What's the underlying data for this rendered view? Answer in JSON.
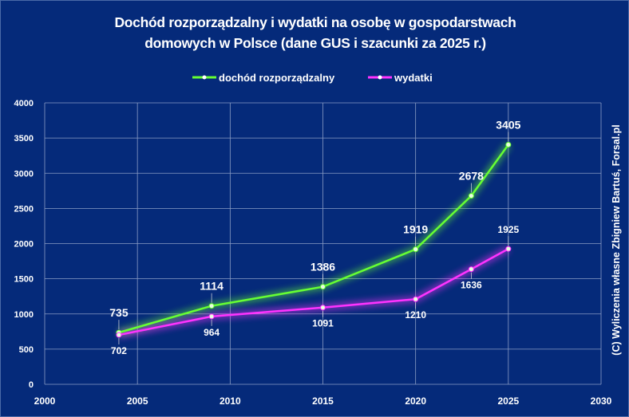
{
  "chart_data": {
    "type": "line",
    "title": "Dochód rozporządzalny i wydatki na osobę w gospodarstwach domowych w Polsce (dane GUS i szacunki za 2025 r.)",
    "title_lines": [
      "Dochód rozporządzalny i wydatki na osobę w gospodarstwach",
      "domowych w Polsce (dane GUS i szacunki za 2025 r.)"
    ],
    "xlabel": "",
    "ylabel": "",
    "xlim": [
      2000,
      2030
    ],
    "ylim": [
      0,
      4000
    ],
    "x_ticks": [
      2000,
      2005,
      2010,
      2015,
      2020,
      2025,
      2030
    ],
    "y_ticks": [
      0,
      500,
      1000,
      1500,
      2000,
      2500,
      3000,
      3500,
      4000
    ],
    "grid": true,
    "legend_position": "top",
    "x": [
      2004,
      2009,
      2015,
      2020,
      2023,
      2025
    ],
    "series": [
      {
        "name": "dochód rozporządzalny",
        "color": "#66ff33",
        "values": [
          735,
          1114,
          1386,
          1919,
          2678,
          3405
        ],
        "label_position": "above"
      },
      {
        "name": "wydatki",
        "color": "#ff33ff",
        "values": [
          702,
          964,
          1091,
          1210,
          1636,
          1925
        ],
        "label_position": "below"
      }
    ],
    "annotation": "(C) Wyliczenia własne Zbigniew Bartuś, Forsal.pl",
    "background": "#052a7a"
  }
}
